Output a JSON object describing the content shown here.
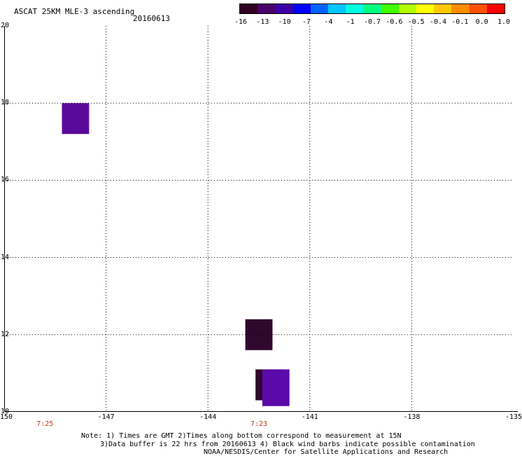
{
  "header": {
    "title": "ASCAT 25KM MLE-3 ascending",
    "date": "20160613"
  },
  "colorbar": {
    "colors": [
      "#300020",
      "#4a0068",
      "#3c00a8",
      "#0000ff",
      "#0064ff",
      "#00c8ff",
      "#00ffe0",
      "#00ff80",
      "#40ff00",
      "#b0ff00",
      "#ffff00",
      "#ffc800",
      "#ff8c00",
      "#ff5000",
      "#ff0000"
    ],
    "labels": [
      "-16",
      "-13",
      "-10",
      "-7",
      "-4",
      "-1",
      "-0.7",
      "-0.6",
      "-0.5",
      "-0.4",
      "-0.1",
      "0.0",
      "1.0"
    ]
  },
  "map": {
    "lon_range": [
      -150,
      -135
    ],
    "lat_range": [
      10,
      20
    ],
    "lon_ticks": [
      "-150",
      "-147",
      "-144",
      "-141",
      "-138",
      "-135"
    ],
    "lat_ticks": [
      "20",
      "18",
      "16",
      "14",
      "12",
      "10"
    ],
    "pass_times": [
      {
        "lon": -148.8,
        "label": "7:25"
      },
      {
        "lon": -142.5,
        "label": "7:23"
      }
    ],
    "cells": [
      {
        "lon0": -148.3,
        "lon1": -147.5,
        "lat0": 17.2,
        "lat1": 18.0,
        "color": "#5a0a9a"
      },
      {
        "lon0": -142.9,
        "lon1": -142.1,
        "lat0": 11.6,
        "lat1": 12.4,
        "color": "#30082e"
      },
      {
        "lon0": -142.6,
        "lon1": -141.8,
        "lat0": 10.3,
        "lat1": 11.1,
        "color": "#30082e"
      },
      {
        "lon0": -142.4,
        "lon1": -141.6,
        "lat0": 10.15,
        "lat1": 11.1,
        "color": "#5a0aa8"
      }
    ]
  },
  "footer": {
    "line1": "Note: 1) Times are GMT 2)Times along bottom correspond to measurement at 15N",
    "line2": "3)Data buffer is 22 hrs from 20160613 4) Black wind barbs indicate possible contamination",
    "line3": "NOAA/NESDIS/Center for Satellite Applications and Research"
  }
}
